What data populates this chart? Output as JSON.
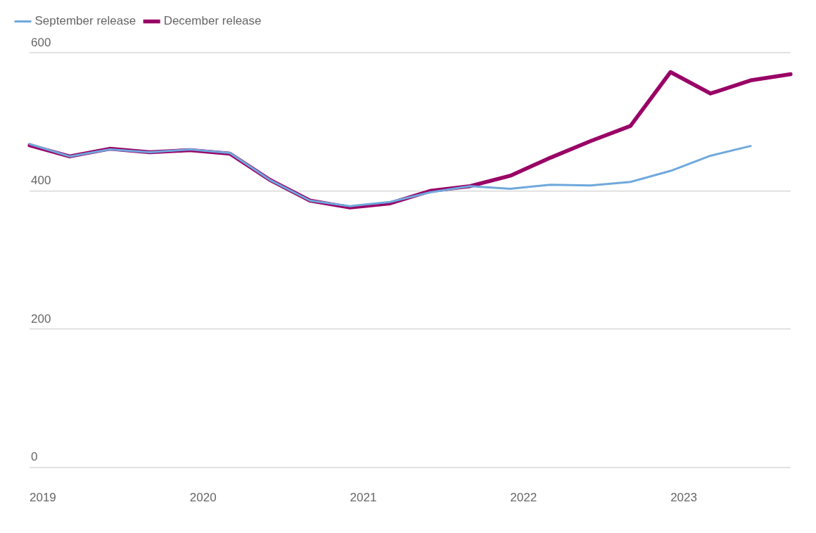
{
  "chart_data": {
    "type": "line",
    "categories": [
      "2019",
      null,
      null,
      null,
      "2020",
      null,
      null,
      null,
      "2021",
      null,
      null,
      null,
      "2022",
      null,
      null,
      null,
      "2023",
      null,
      null,
      null
    ],
    "series": [
      {
        "name": "September release",
        "color": "#6fa8dc",
        "values": [
          468,
          450,
          460,
          456,
          460,
          455,
          416,
          386,
          378,
          384,
          398,
          407,
          403,
          409,
          408,
          413,
          429,
          451,
          465,
          null
        ]
      },
      {
        "name": "December release",
        "color": "#990066",
        "values": [
          466,
          450,
          461,
          456,
          459,
          454,
          416,
          386,
          376,
          382,
          400,
          407,
          422,
          448,
          472,
          494,
          572,
          541,
          560,
          569
        ]
      }
    ],
    "ylim": [
      0,
      600
    ],
    "yticks": [
      0,
      200,
      400,
      600
    ],
    "grid": "y",
    "legend": "top left",
    "marker": "none",
    "line_style": "solid"
  }
}
